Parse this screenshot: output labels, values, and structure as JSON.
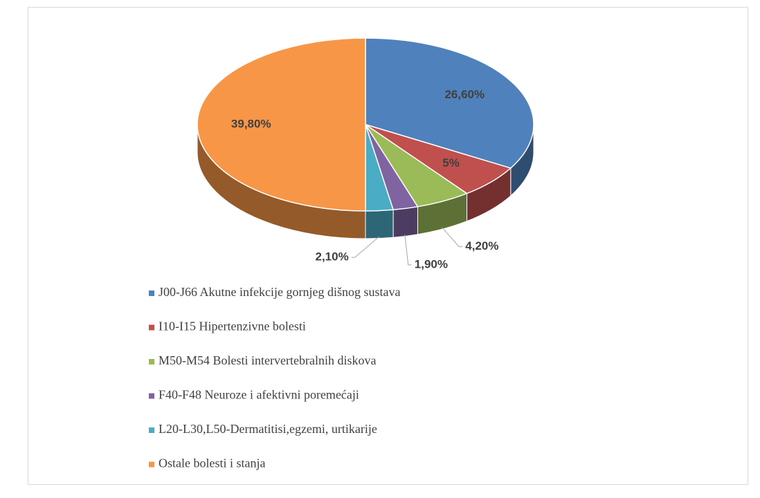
{
  "chart_data": {
    "type": "pie3d",
    "categories": [
      "J00-J66 Akutne infekcije gornjeg dišnog sustava",
      "I10-I15 Hipertenzivne bolesti",
      "M50-M54 Bolesti intervertebralnih diskova",
      "F40-F48 Neuroze i afektivni poremećaji",
      "L20-L30,L50-Dermatitisi,egzemi, urtikarije",
      "Ostale bolesti i stanja"
    ],
    "values": [
      26.6,
      5,
      4.2,
      1.9,
      2.1,
      39.8
    ],
    "value_labels": [
      "26,60%",
      "5%",
      "4,20%",
      "1,90%",
      "2,10%",
      "39,80%"
    ],
    "colors": [
      "#4f81bd",
      "#c0504d",
      "#9bbb59",
      "#8064a2",
      "#4bacc6",
      "#f79646"
    ],
    "legend": "bottom"
  }
}
